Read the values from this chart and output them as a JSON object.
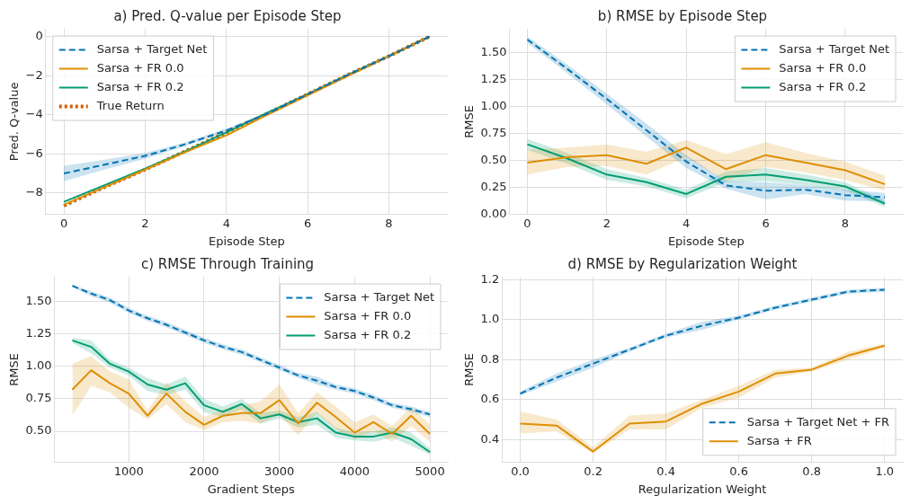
{
  "chart_data": [
    {
      "type": "line",
      "title": "a) Pred. Q-value per Episode Step",
      "xlabel": "Episode Step",
      "ylabel": "Pred. Q-value",
      "x": [
        0,
        1,
        2,
        3,
        4,
        5,
        6,
        7,
        8,
        9
      ],
      "xlim": [
        -0.45,
        9.45
      ],
      "xticks": [
        0,
        2,
        4,
        6,
        8
      ],
      "ylim": [
        -9.1,
        0.4
      ],
      "yticks": [
        {
          "value": -8,
          "label": "−8"
        },
        {
          "value": -6,
          "label": "−6"
        },
        {
          "value": -4,
          "label": "−4"
        },
        {
          "value": -2,
          "label": "−2"
        },
        0
      ],
      "grid": true,
      "legend": "top left",
      "marker": "none",
      "series": [
        {
          "name": "Sarsa + Target Net",
          "color": "#0173b2",
          "line_style": "dashed",
          "values": [
            -7.0,
            -6.55,
            -6.1,
            -5.5,
            -4.8,
            -3.95,
            -2.95,
            -1.95,
            -1.0,
            0
          ],
          "lower": [
            -7.4,
            -6.8,
            -6.25,
            -5.6,
            -4.9,
            -4.0,
            -3.0,
            -2.0,
            -1.05,
            -0.05
          ],
          "upper": [
            -6.6,
            -6.3,
            -5.95,
            -5.4,
            -4.7,
            -3.9,
            -2.9,
            -1.9,
            -0.95,
            0.05
          ]
        },
        {
          "name": "Sarsa + FR 0.0",
          "color": "#de8f05",
          "line_style": "solid",
          "values": [
            -8.6,
            -7.7,
            -6.8,
            -5.9,
            -5.05,
            -4.0,
            -3.0,
            -2.0,
            -1.0,
            0
          ]
        },
        {
          "name": "Sarsa + FR 0.2",
          "color": "#029e73",
          "line_style": "solid",
          "values": [
            -8.45,
            -7.6,
            -6.75,
            -5.85,
            -4.9,
            -3.9,
            -2.95,
            -1.95,
            -1.0,
            0
          ]
        },
        {
          "name": "True Return",
          "color": "#d55e00",
          "line_style": "dotted",
          "values": [
            -8.65,
            -7.7,
            -6.8,
            -5.85,
            -4.9,
            -3.95,
            -2.95,
            -1.95,
            -1.0,
            0
          ]
        }
      ]
    },
    {
      "type": "line",
      "title": "b) RMSE by Episode Step",
      "xlabel": "Episode Step",
      "ylabel": "RMSE",
      "x": [
        0,
        1,
        2,
        3,
        4,
        5,
        6,
        7,
        8,
        9
      ],
      "xlim": [
        -0.45,
        9.45
      ],
      "xticks": [
        0,
        2,
        4,
        6,
        8
      ],
      "ylim": [
        0,
        1.72
      ],
      "yticks": [
        {
          "value": 0,
          "label": "0.00"
        },
        {
          "value": 0.25,
          "label": "0.25"
        },
        {
          "value": 0.5,
          "label": "0.50"
        },
        {
          "value": 0.75,
          "label": "0.75"
        },
        {
          "value": 1,
          "label": "1.00"
        },
        {
          "value": 1.25,
          "label": "1.25"
        },
        {
          "value": 1.5,
          "label": "1.50"
        }
      ],
      "grid": true,
      "legend": "top right",
      "marker": "none",
      "series": [
        {
          "name": "Sarsa + Target Net",
          "color": "#0173b2",
          "line_style": "dashed",
          "values": [
            1.62,
            1.35,
            1.07,
            0.78,
            0.49,
            0.27,
            0.22,
            0.23,
            0.18,
            0.16
          ],
          "lower": [
            1.59,
            1.31,
            1.02,
            0.72,
            0.43,
            0.24,
            0.14,
            0.19,
            0.13,
            0.12
          ],
          "upper": [
            1.65,
            1.39,
            1.12,
            0.84,
            0.55,
            0.31,
            0.3,
            0.27,
            0.23,
            0.2
          ]
        },
        {
          "name": "Sarsa + FR 0.0",
          "color": "#de8f05",
          "line_style": "solid",
          "values": [
            0.48,
            0.53,
            0.55,
            0.47,
            0.62,
            0.42,
            0.55,
            0.48,
            0.41,
            0.28
          ],
          "lower": [
            0.37,
            0.44,
            0.45,
            0.37,
            0.53,
            0.31,
            0.44,
            0.39,
            0.32,
            0.22
          ],
          "upper": [
            0.6,
            0.62,
            0.65,
            0.58,
            0.69,
            0.56,
            0.67,
            0.57,
            0.49,
            0.36
          ]
        },
        {
          "name": "Sarsa + FR 0.2",
          "color": "#029e73",
          "line_style": "solid",
          "values": [
            0.65,
            0.52,
            0.37,
            0.3,
            0.19,
            0.35,
            0.37,
            0.32,
            0.26,
            0.1
          ],
          "lower": [
            0.6,
            0.47,
            0.32,
            0.26,
            0.15,
            0.3,
            0.31,
            0.27,
            0.22,
            0.07
          ],
          "upper": [
            0.7,
            0.57,
            0.42,
            0.34,
            0.23,
            0.4,
            0.43,
            0.37,
            0.3,
            0.13
          ]
        }
      ]
    },
    {
      "type": "line",
      "title": "c) RMSE Through Training",
      "xlabel": "Gradient Steps",
      "ylabel": "RMSE",
      "x": [
        250,
        500,
        750,
        1000,
        1250,
        1500,
        1750,
        2000,
        2250,
        2500,
        2750,
        3000,
        3250,
        3500,
        3750,
        4000,
        4250,
        4500,
        4750,
        5000
      ],
      "xlim": [
        12.5,
        5237.5
      ],
      "xticks": [
        1000,
        2000,
        3000,
        4000,
        5000
      ],
      "ylim": [
        0.26,
        1.69
      ],
      "yticks": [
        {
          "value": 0.5,
          "label": "0.50"
        },
        {
          "value": 0.75,
          "label": "0.75"
        },
        {
          "value": 1,
          "label": "1.00"
        },
        {
          "value": 1.25,
          "label": "1.25"
        },
        {
          "value": 1.5,
          "label": "1.50"
        }
      ],
      "grid": true,
      "legend": "top right",
      "marker": "none",
      "series": [
        {
          "name": "Sarsa + Target Net",
          "color": "#0173b2",
          "line_style": "dashed",
          "values": [
            1.62,
            1.56,
            1.51,
            1.43,
            1.37,
            1.32,
            1.26,
            1.2,
            1.15,
            1.11,
            1.05,
            0.99,
            0.93,
            0.89,
            0.84,
            0.81,
            0.76,
            0.7,
            0.67,
            0.63
          ],
          "lower": [
            1.61,
            1.54,
            1.49,
            1.41,
            1.35,
            1.3,
            1.24,
            1.18,
            1.13,
            1.09,
            1.03,
            0.97,
            0.91,
            0.86,
            0.82,
            0.79,
            0.74,
            0.68,
            0.65,
            0.61
          ],
          "upper": [
            1.63,
            1.58,
            1.53,
            1.45,
            1.39,
            1.34,
            1.28,
            1.22,
            1.17,
            1.13,
            1.07,
            1.01,
            0.95,
            0.92,
            0.86,
            0.83,
            0.78,
            0.72,
            0.69,
            0.65
          ]
        },
        {
          "name": "Sarsa + FR 0.0",
          "color": "#de8f05",
          "line_style": "solid",
          "values": [
            0.82,
            0.97,
            0.87,
            0.79,
            0.62,
            0.79,
            0.65,
            0.55,
            0.62,
            0.64,
            0.64,
            0.74,
            0.56,
            0.72,
            0.61,
            0.49,
            0.57,
            0.48,
            0.62,
            0.48
          ],
          "lower": [
            0.62,
            0.85,
            0.8,
            0.68,
            0.59,
            0.71,
            0.57,
            0.51,
            0.57,
            0.58,
            0.56,
            0.63,
            0.47,
            0.64,
            0.52,
            0.44,
            0.5,
            0.42,
            0.54,
            0.42
          ],
          "upper": [
            1.02,
            1.08,
            0.96,
            0.9,
            0.66,
            0.88,
            0.73,
            0.61,
            0.67,
            0.7,
            0.73,
            0.86,
            0.64,
            0.8,
            0.69,
            0.57,
            0.63,
            0.54,
            0.69,
            0.55
          ]
        },
        {
          "name": "Sarsa + FR 0.2",
          "color": "#029e73",
          "line_style": "solid",
          "values": [
            1.2,
            1.15,
            1.02,
            0.96,
            0.86,
            0.82,
            0.87,
            0.7,
            0.65,
            0.71,
            0.6,
            0.63,
            0.57,
            0.6,
            0.49,
            0.46,
            0.46,
            0.49,
            0.44,
            0.34
          ],
          "lower": [
            1.18,
            1.1,
            0.99,
            0.93,
            0.81,
            0.78,
            0.82,
            0.65,
            0.61,
            0.67,
            0.56,
            0.6,
            0.53,
            0.55,
            0.45,
            0.43,
            0.42,
            0.45,
            0.39,
            0.32
          ],
          "upper": [
            1.22,
            1.2,
            1.05,
            0.99,
            0.91,
            0.86,
            0.92,
            0.75,
            0.69,
            0.75,
            0.64,
            0.66,
            0.61,
            0.65,
            0.53,
            0.49,
            0.5,
            0.53,
            0.49,
            0.37
          ]
        }
      ]
    },
    {
      "type": "line",
      "title": "d) RMSE by Regularization Weight",
      "xlabel": "Regularization Weight",
      "ylabel": "RMSE",
      "x": [
        0,
        0.1,
        0.2,
        0.3,
        0.4,
        0.5,
        0.6,
        0.7,
        0.8,
        0.9,
        1.0
      ],
      "xlim": [
        -0.05,
        1.05
      ],
      "xticks": [
        {
          "value": 0,
          "label": "0.0"
        },
        0.2,
        0.4,
        0.6,
        0.8,
        {
          "value": 1,
          "label": "1.0"
        }
      ],
      "ylim": [
        0.285,
        1.215
      ],
      "yticks": [
        0.4,
        0.6,
        0.8,
        {
          "value": 1,
          "label": "1.0"
        },
        1.2
      ],
      "grid": true,
      "legend": "bottom right",
      "marker": "none",
      "series": [
        {
          "name": "Sarsa + Target Net + FR",
          "color": "#0173b2",
          "line_style": "dashed",
          "values": [
            0.63,
            0.71,
            0.78,
            0.85,
            0.92,
            0.97,
            1.01,
            1.06,
            1.1,
            1.14,
            1.15
          ],
          "lower": [
            0.62,
            0.69,
            0.76,
            0.84,
            0.91,
            0.95,
            1.0,
            1.05,
            1.09,
            1.13,
            1.14
          ],
          "upper": [
            0.64,
            0.73,
            0.8,
            0.86,
            0.93,
            0.99,
            1.02,
            1.07,
            1.11,
            1.15,
            1.16
          ]
        },
        {
          "name": "Sarsa + FR",
          "color": "#de8f05",
          "line_style": "solid",
          "values": [
            0.48,
            0.47,
            0.34,
            0.48,
            0.49,
            0.58,
            0.64,
            0.73,
            0.75,
            0.82,
            0.87
          ],
          "lower": [
            0.43,
            0.44,
            0.33,
            0.45,
            0.45,
            0.56,
            0.61,
            0.71,
            0.74,
            0.8,
            0.86
          ],
          "upper": [
            0.54,
            0.5,
            0.36,
            0.52,
            0.53,
            0.6,
            0.67,
            0.75,
            0.76,
            0.84,
            0.88
          ]
        }
      ]
    }
  ]
}
